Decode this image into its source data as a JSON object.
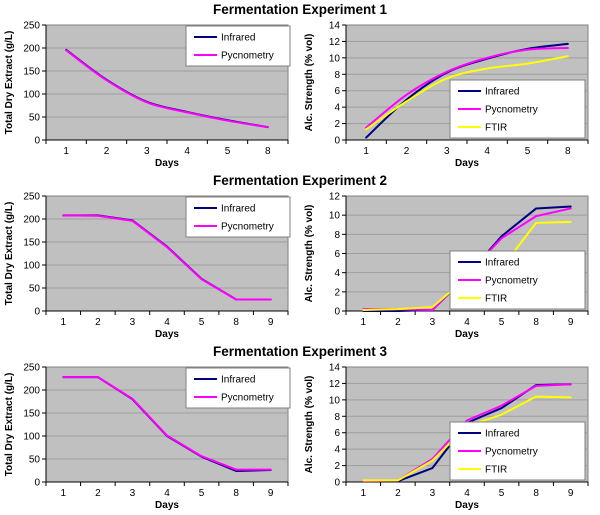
{
  "page": {
    "background": "#ffffff"
  },
  "colors": {
    "plot_bg": "#c0c0c0",
    "gridline": "#9e9e9e",
    "axis": "#000000",
    "plot_border": "#808080",
    "legend_bg": "#ffffff",
    "legend_border": "#808080",
    "text": "#000000"
  },
  "rows": [
    {
      "title": "Fermentation Experiment 1",
      "charts": [
        0,
        1
      ]
    },
    {
      "title": "Fermentation Experiment 2",
      "charts": [
        2,
        3
      ]
    },
    {
      "title": "Fermentation Experiment 3",
      "charts": [
        4,
        5
      ]
    }
  ],
  "chart_data": [
    {
      "type": "line",
      "experiment": "Fermentation Experiment 1",
      "name": "total-dry-extract-exp1",
      "xlabel": "Days",
      "ylabel": "Total Dry Extract (g/L)",
      "categories": [
        "1",
        "2",
        "3",
        "4",
        "5",
        "8"
      ],
      "ylim": [
        0,
        250
      ],
      "yticks": [
        0,
        50,
        100,
        150,
        200,
        250
      ],
      "grid": true,
      "smooth": true,
      "legend_position": "top-right",
      "series": [
        {
          "name": "Infrared",
          "color": "#000080",
          "values": [
            196,
            131,
            83,
            61,
            43,
            28
          ]
        },
        {
          "name": "Pycnometry",
          "color": "#ff00ff",
          "values": [
            195,
            130,
            82,
            60,
            42,
            28
          ]
        }
      ]
    },
    {
      "type": "line",
      "experiment": "Fermentation Experiment 1",
      "name": "alc-strength-exp1",
      "xlabel": "Days",
      "ylabel": "Alc. Strength (% vol)",
      "categories": [
        "1",
        "2",
        "3",
        "4",
        "5",
        "8"
      ],
      "ylim": [
        0,
        14
      ],
      "yticks": [
        0,
        2,
        4,
        6,
        8,
        10,
        12,
        14
      ],
      "grid": true,
      "smooth": true,
      "legend_position": "bottom-right",
      "series": [
        {
          "name": "Infrared",
          "color": "#000080",
          "values": [
            0.3,
            4.9,
            8.2,
            9.9,
            11.1,
            11.7
          ]
        },
        {
          "name": "Pycnometry",
          "color": "#ff00ff",
          "values": [
            1.5,
            5.5,
            8.3,
            10.0,
            11.0,
            11.2
          ]
        },
        {
          "name": "FTIR",
          "color": "#ffff00",
          "values": [
            1.3,
            4.7,
            7.5,
            8.7,
            9.3,
            10.2
          ]
        }
      ]
    },
    {
      "type": "line",
      "experiment": "Fermentation Experiment 2",
      "name": "total-dry-extract-exp2",
      "xlabel": "Days",
      "ylabel": "Total Dry Extract (g/L)",
      "categories": [
        "1",
        "2",
        "3",
        "4",
        "5",
        "8",
        "9"
      ],
      "ylim": [
        0,
        250
      ],
      "yticks": [
        0,
        50,
        100,
        150,
        200,
        250
      ],
      "grid": true,
      "smooth": false,
      "legend_position": "top-right",
      "series": [
        {
          "name": "Infrared",
          "color": "#000080",
          "values": [
            208,
            208,
            197,
            140,
            70,
            25,
            25
          ]
        },
        {
          "name": "Pycnometry",
          "color": "#ff00ff",
          "values": [
            208,
            207,
            196,
            139,
            69,
            25,
            25
          ]
        }
      ]
    },
    {
      "type": "line",
      "experiment": "Fermentation Experiment 2",
      "name": "alc-strength-exp2",
      "xlabel": "Days",
      "ylabel": "Alc. Strength (% vol)",
      "categories": [
        "1",
        "2",
        "3",
        "4",
        "5",
        "8",
        "9"
      ],
      "ylim": [
        0,
        12
      ],
      "yticks": [
        0,
        2,
        4,
        6,
        8,
        10,
        12
      ],
      "grid": true,
      "smooth": false,
      "legend_position": "bottom-right",
      "series": [
        {
          "name": "Infrared",
          "color": "#000080",
          "values": [
            0.0,
            0.0,
            0.1,
            3.7,
            7.8,
            10.7,
            10.9
          ]
        },
        {
          "name": "Pycnometry",
          "color": "#ff00ff",
          "values": [
            0.2,
            0.2,
            0.1,
            3.8,
            7.6,
            9.9,
            10.7
          ]
        },
        {
          "name": "FTIR",
          "color": "#ffff00",
          "values": [
            0.1,
            0.2,
            0.4,
            3.5,
            4.5,
            9.2,
            9.3
          ]
        }
      ]
    },
    {
      "type": "line",
      "experiment": "Fermentation Experiment 3",
      "name": "total-dry-extract-exp3",
      "xlabel": "Days",
      "ylabel": "Total Dry Extract (g/L)",
      "categories": [
        "1",
        "2",
        "3",
        "4",
        "5",
        "8",
        "9"
      ],
      "ylim": [
        0,
        250
      ],
      "yticks": [
        0,
        50,
        100,
        150,
        200,
        250
      ],
      "grid": true,
      "smooth": false,
      "legend_position": "top-right",
      "series": [
        {
          "name": "Infrared",
          "color": "#000080",
          "values": [
            228,
            228,
            180,
            100,
            55,
            24,
            26
          ]
        },
        {
          "name": "Pycnometry",
          "color": "#ff00ff",
          "values": [
            228,
            228,
            181,
            101,
            56,
            27,
            27
          ]
        }
      ]
    },
    {
      "type": "line",
      "experiment": "Fermentation Experiment 3",
      "name": "alc-strength-exp3",
      "xlabel": "Days",
      "ylabel": "Alc. Strength (% vol)",
      "categories": [
        "1",
        "2",
        "3",
        "4",
        "5",
        "8",
        "9"
      ],
      "ylim": [
        0,
        14
      ],
      "yticks": [
        0,
        2,
        4,
        6,
        8,
        10,
        12,
        14
      ],
      "grid": true,
      "smooth": false,
      "legend_position": "bottom-right",
      "series": [
        {
          "name": "Infrared",
          "color": "#000080",
          "values": [
            0.1,
            0.1,
            1.7,
            7.2,
            9.0,
            11.8,
            11.9
          ]
        },
        {
          "name": "Pycnometry",
          "color": "#ff00ff",
          "values": [
            0.1,
            0.2,
            2.8,
            7.5,
            9.3,
            11.7,
            11.9
          ]
        },
        {
          "name": "FTIR",
          "color": "#ffff00",
          "values": [
            0.2,
            0.2,
            2.6,
            6.8,
            8.2,
            10.4,
            10.3
          ]
        }
      ]
    }
  ]
}
